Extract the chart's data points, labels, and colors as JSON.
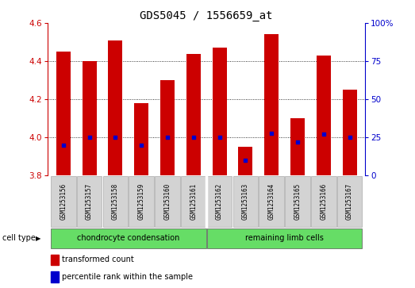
{
  "title": "GDS5045 / 1556659_at",
  "samples": [
    "GSM1253156",
    "GSM1253157",
    "GSM1253158",
    "GSM1253159",
    "GSM1253160",
    "GSM1253161",
    "GSM1253162",
    "GSM1253163",
    "GSM1253164",
    "GSM1253165",
    "GSM1253166",
    "GSM1253167"
  ],
  "transformed_count": [
    4.45,
    4.4,
    4.51,
    4.18,
    4.3,
    4.44,
    4.47,
    3.95,
    4.54,
    4.1,
    4.43,
    4.25
  ],
  "percentile_rank": [
    20,
    25,
    25,
    20,
    25,
    25,
    25,
    10,
    28,
    22,
    27,
    25
  ],
  "y_min": 3.8,
  "y_max": 4.6,
  "y_ticks": [
    3.8,
    4.0,
    4.2,
    4.4,
    4.6
  ],
  "right_y_ticks": [
    0,
    25,
    50,
    75,
    100
  ],
  "bar_color": "#cc0000",
  "dot_color": "#0000cc",
  "title_fontsize": 10,
  "groups": [
    {
      "label": "chondrocyte condensation",
      "start": 0,
      "end": 5,
      "color": "#66dd66"
    },
    {
      "label": "remaining limb cells",
      "start": 6,
      "end": 11,
      "color": "#66dd66"
    }
  ],
  "cell_type_label": "cell type",
  "legend_items": [
    {
      "color": "#cc0000",
      "label": "transformed count"
    },
    {
      "color": "#0000cc",
      "label": "percentile rank within the sample"
    }
  ],
  "bar_width": 0.55,
  "xticklabel_bg": "#d3d3d3",
  "group_separator": 5.5
}
